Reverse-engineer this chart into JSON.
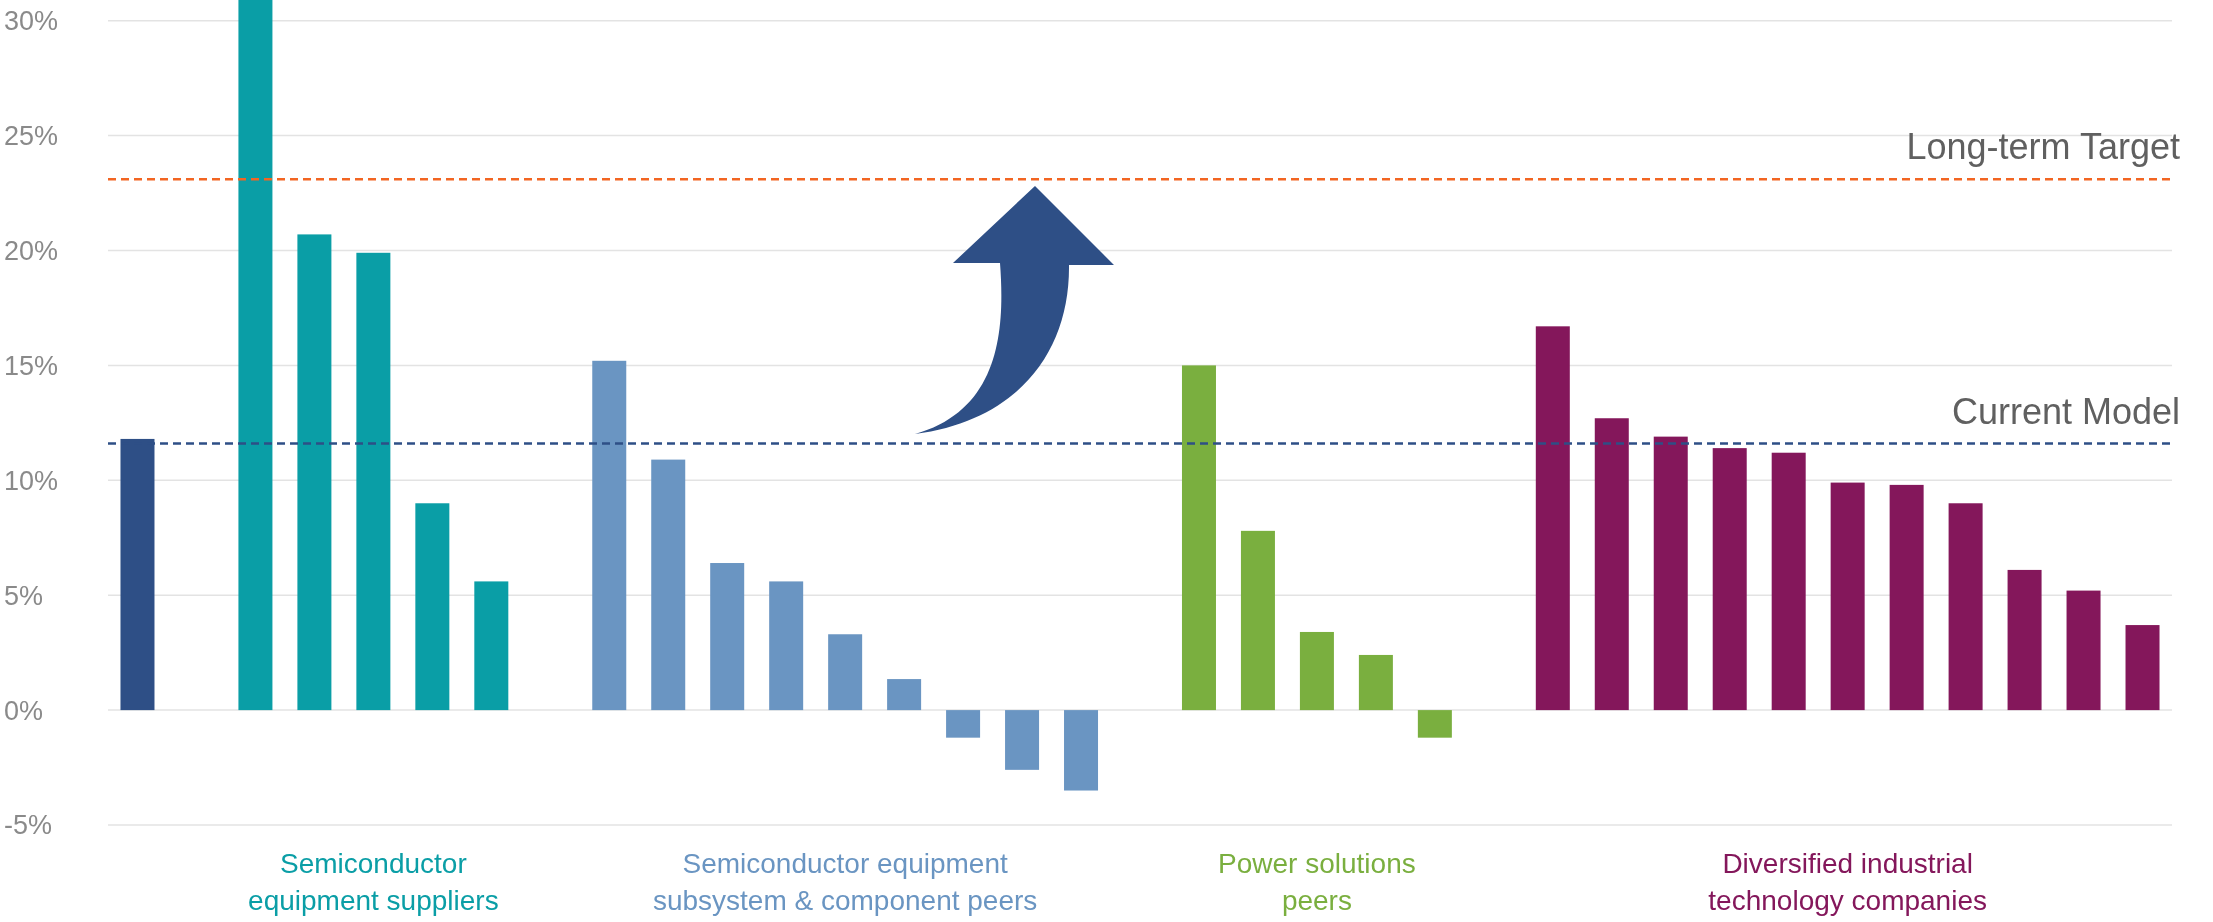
{
  "chart_data": {
    "type": "bar",
    "categories": [
      null,
      null,
      null,
      null,
      null,
      null,
      null,
      null,
      null,
      null,
      null,
      null,
      null,
      null,
      null,
      null,
      null,
      null,
      null,
      null,
      null,
      null,
      null,
      null,
      null,
      null,
      null,
      null,
      null,
      null,
      null,
      null,
      null,
      null,
      null
    ],
    "series": [
      {
        "color": "#2e4f86",
        "values": [
          11.8,
          null,
          null,
          null,
          null,
          null,
          null,
          null,
          null,
          null,
          null,
          null,
          null,
          null,
          null,
          null,
          null,
          null,
          null,
          null,
          null,
          null,
          null,
          null,
          null,
          null,
          null,
          null,
          null,
          null,
          null,
          null,
          null,
          null,
          null
        ]
      },
      {
        "name": "Semiconductor equipment suppliers",
        "color": "#0a9ea6",
        "values": [
          null,
          null,
          30.9,
          20.7,
          19.9,
          9.0,
          5.6,
          null,
          null,
          null,
          null,
          null,
          null,
          null,
          null,
          null,
          null,
          null,
          null,
          null,
          null,
          null,
          null,
          null,
          null,
          null,
          null,
          null,
          null,
          null,
          null,
          null,
          null,
          null,
          null
        ]
      },
      {
        "name": "Semiconductor equipment subsystem & component peers",
        "color": "#6a95c2",
        "values": [
          null,
          null,
          null,
          null,
          null,
          null,
          null,
          null,
          15.2,
          10.9,
          6.4,
          5.6,
          3.3,
          1.35,
          -1.2,
          -2.6,
          -3.5,
          null,
          null,
          null,
          null,
          null,
          null,
          null,
          null,
          null,
          null,
          null,
          null,
          null,
          null,
          null,
          null,
          null,
          null
        ]
      },
      {
        "name": "Power solutions peers",
        "color": "#7aaf3f",
        "values": [
          null,
          null,
          null,
          null,
          null,
          null,
          null,
          null,
          null,
          null,
          null,
          null,
          null,
          null,
          null,
          null,
          null,
          null,
          15.0,
          7.8,
          3.4,
          2.4,
          -1.2,
          null,
          null,
          null,
          null,
          null,
          null,
          null,
          null,
          null,
          null,
          null,
          null
        ]
      },
      {
        "name": "Diversified industrial technology companies",
        "color": "#84175b",
        "values": [
          null,
          null,
          null,
          null,
          null,
          null,
          null,
          null,
          null,
          null,
          null,
          null,
          null,
          null,
          null,
          null,
          null,
          null,
          null,
          null,
          null,
          null,
          null,
          null,
          16.7,
          12.7,
          11.9,
          11.4,
          11.2,
          9.9,
          9.8,
          9.0,
          6.1,
          5.2,
          3.7
        ]
      }
    ],
    "ylim": [
      -5,
      30.9
    ],
    "yticks": [
      {
        "value": -5,
        "label": "-5%"
      },
      {
        "value": 0,
        "label": "0%"
      },
      {
        "value": 5,
        "label": "5%"
      },
      {
        "value": 10,
        "label": "10%"
      },
      {
        "value": 15,
        "label": "15%"
      },
      {
        "value": 20,
        "label": "20%"
      },
      {
        "value": 25,
        "label": "25%"
      },
      {
        "value": 30,
        "label": "30%"
      }
    ],
    "grid": "y",
    "ref_lines": [
      {
        "axis": "y",
        "value": 23.1,
        "label": "Long-term Target",
        "color": "#f26522",
        "line_style": "dashed"
      },
      {
        "axis": "y",
        "value": 11.6,
        "label": "Current Model",
        "color": "#2e4f86",
        "line_style": "dashed"
      }
    ]
  }
}
